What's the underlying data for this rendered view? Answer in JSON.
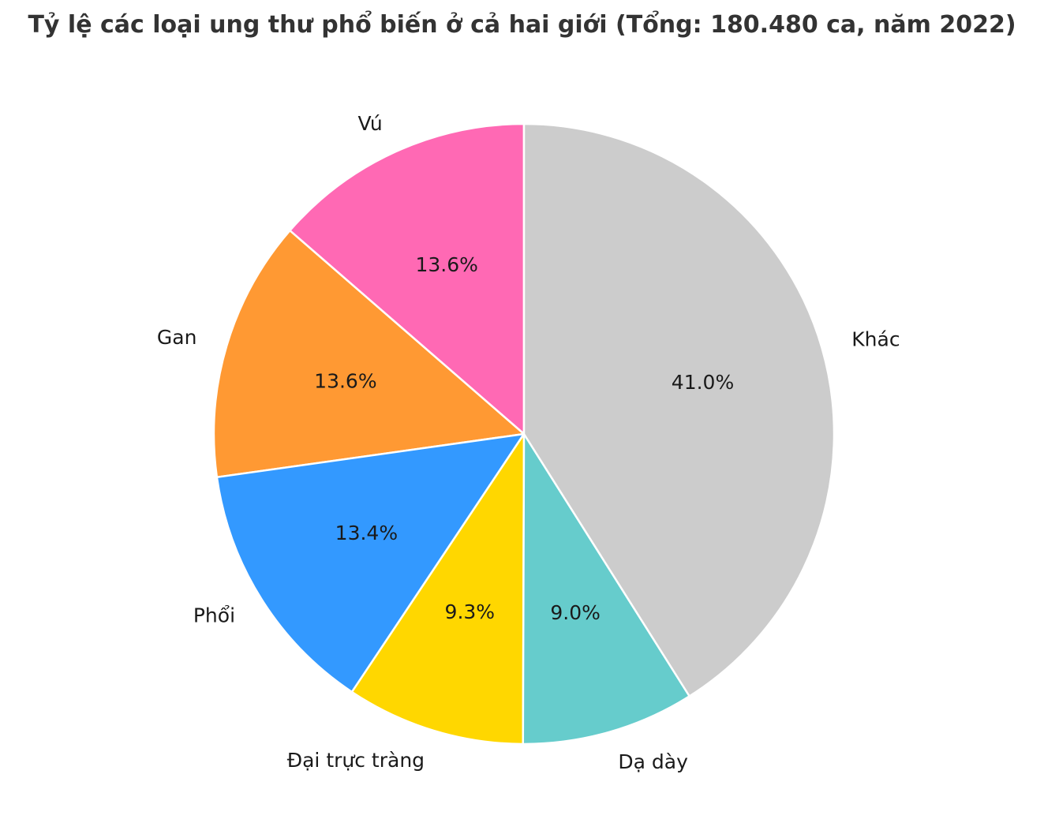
{
  "chart_data": {
    "type": "pie",
    "title": "Tỷ lệ các loại ung thư phổ biến ở cả hai giới (Tổng: 180.480 ca, năm 2022)",
    "categories": [
      "Vú",
      "Gan",
      "Phổi",
      "Đại trực tràng",
      "Dạ dày",
      "Khác"
    ],
    "values": [
      13.6,
      13.6,
      13.4,
      9.3,
      9.0,
      41.0
    ],
    "labels": [
      "13.6%",
      "13.6%",
      "13.4%",
      "9.3%",
      "9.0%",
      "41.0%"
    ],
    "colors": [
      "#FF69B4",
      "#FF9933",
      "#3399FF",
      "#FFD700",
      "#66CCCC",
      "#CCCCCC"
    ],
    "start_angle_deg": 90,
    "direction": "counterclockwise",
    "legend": "none"
  }
}
